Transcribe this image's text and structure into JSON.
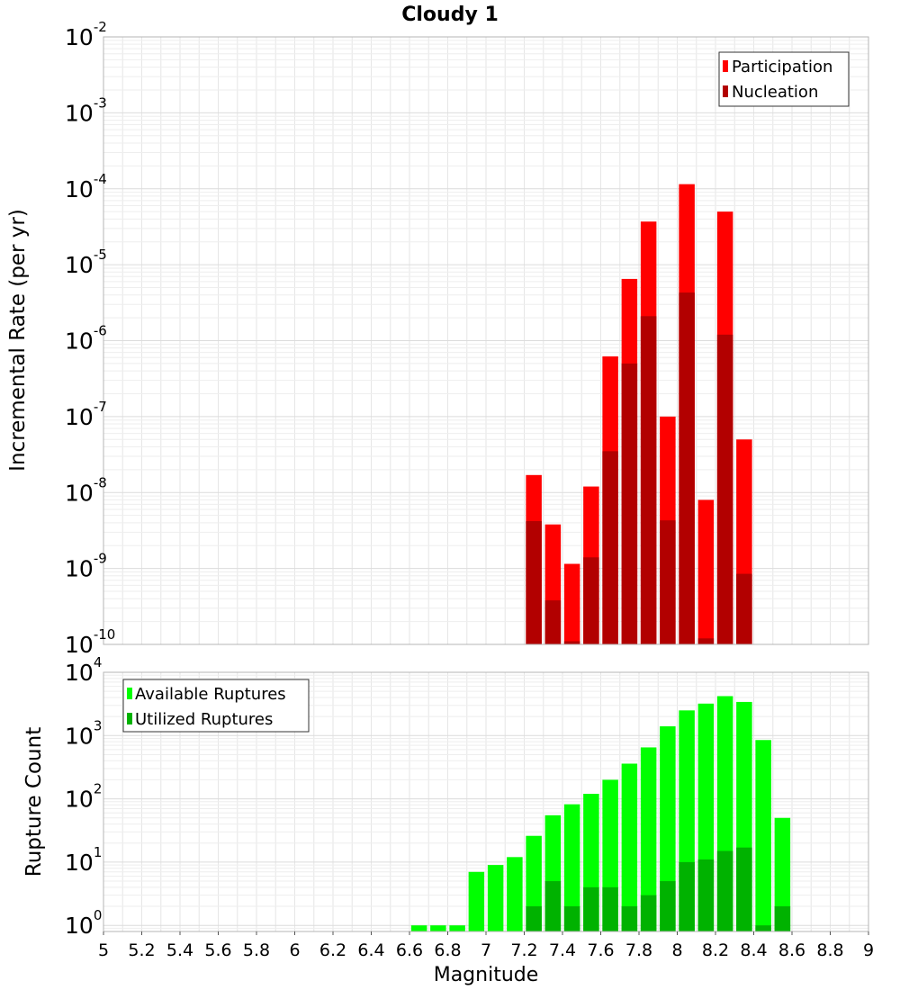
{
  "title": "Cloudy 1",
  "xlabel": "Magnitude",
  "x_ticks": [
    "5",
    "5.2",
    "5.4",
    "5.6",
    "5.8",
    "6",
    "6.2",
    "6.4",
    "6.6",
    "6.8",
    "7",
    "7.2",
    "7.4",
    "7.6",
    "7.8",
    "8",
    "8.2",
    "8.4",
    "8.6",
    "8.8",
    "9"
  ],
  "colors": {
    "participation": "#ff0000",
    "nucleation": "#b20000",
    "available": "#00ff00",
    "utilized": "#00b200",
    "grid": "#e6e6e6",
    "axis_border": "#b4b4b4"
  },
  "chart_data": [
    {
      "type": "bar",
      "ylabel": "Incremental Rate (per yr)",
      "xlim": [
        5,
        9
      ],
      "ylim": [
        1e-10,
        0.01
      ],
      "yscale": "log",
      "grid": true,
      "legend_position": "top-right",
      "y_ticks": [
        {
          "base": "10",
          "exp": "-2",
          "value": 0.01
        },
        {
          "base": "10",
          "exp": "-3",
          "value": 0.001
        },
        {
          "base": "10",
          "exp": "-4",
          "value": 0.0001
        },
        {
          "base": "10",
          "exp": "-5",
          "value": 1e-05
        },
        {
          "base": "10",
          "exp": "-6",
          "value": 1e-06
        },
        {
          "base": "10",
          "exp": "-7",
          "value": 1e-07
        },
        {
          "base": "10",
          "exp": "-8",
          "value": 1e-08
        },
        {
          "base": "10",
          "exp": "-9",
          "value": 1e-09
        },
        {
          "base": "10",
          "exp": "-10",
          "value": 1e-10
        }
      ],
      "x": [
        7.25,
        7.35,
        7.45,
        7.55,
        7.65,
        7.75,
        7.85,
        7.95,
        8.05,
        8.15,
        8.25,
        8.35
      ],
      "series": [
        {
          "name": "Participation",
          "color": "#ff0000",
          "values": [
            1.7e-08,
            3.8e-09,
            1.15e-09,
            1.2e-08,
            6.2e-07,
            6.5e-06,
            3.7e-05,
            1e-07,
            0.000115,
            8e-09,
            5e-05,
            5e-08
          ]
        },
        {
          "name": "Nucleation",
          "color": "#b20000",
          "values": [
            4.2e-09,
            3.8e-10,
            1.1e-10,
            1.4e-09,
            3.5e-08,
            5e-07,
            2.1e-06,
            4.3e-09,
            4.3e-06,
            1.2e-10,
            1.2e-06,
            8.5e-10
          ]
        }
      ]
    },
    {
      "type": "bar",
      "ylabel": "Rupture Count",
      "xlim": [
        5,
        9
      ],
      "ylim": [
        0.8,
        10000
      ],
      "yscale": "log",
      "grid": true,
      "legend_position": "top-left",
      "y_ticks": [
        {
          "base": "10",
          "exp": "4",
          "value": 10000
        },
        {
          "base": "10",
          "exp": "3",
          "value": 1000
        },
        {
          "base": "10",
          "exp": "2",
          "value": 100
        },
        {
          "base": "10",
          "exp": "1",
          "value": 10
        },
        {
          "base": "10",
          "exp": "0",
          "value": 1
        }
      ],
      "x": [
        6.65,
        6.75,
        6.85,
        6.95,
        7.05,
        7.15,
        7.25,
        7.35,
        7.45,
        7.55,
        7.65,
        7.75,
        7.85,
        7.95,
        8.05,
        8.15,
        8.25,
        8.35,
        8.45,
        8.55
      ],
      "series": [
        {
          "name": "Available Ruptures",
          "color": "#00ff00",
          "values": [
            1,
            1,
            1,
            7,
            9,
            12,
            26,
            55,
            82,
            120,
            200,
            360,
            650,
            1400,
            2500,
            3200,
            4200,
            3400,
            850,
            50
          ]
        },
        {
          "name": "Utilized Ruptures",
          "color": "#00b200",
          "values": [
            0,
            0,
            0,
            0,
            0,
            0,
            2,
            5,
            2,
            4,
            4,
            2,
            3,
            5,
            10,
            11,
            15,
            17,
            1,
            2
          ]
        }
      ]
    }
  ]
}
